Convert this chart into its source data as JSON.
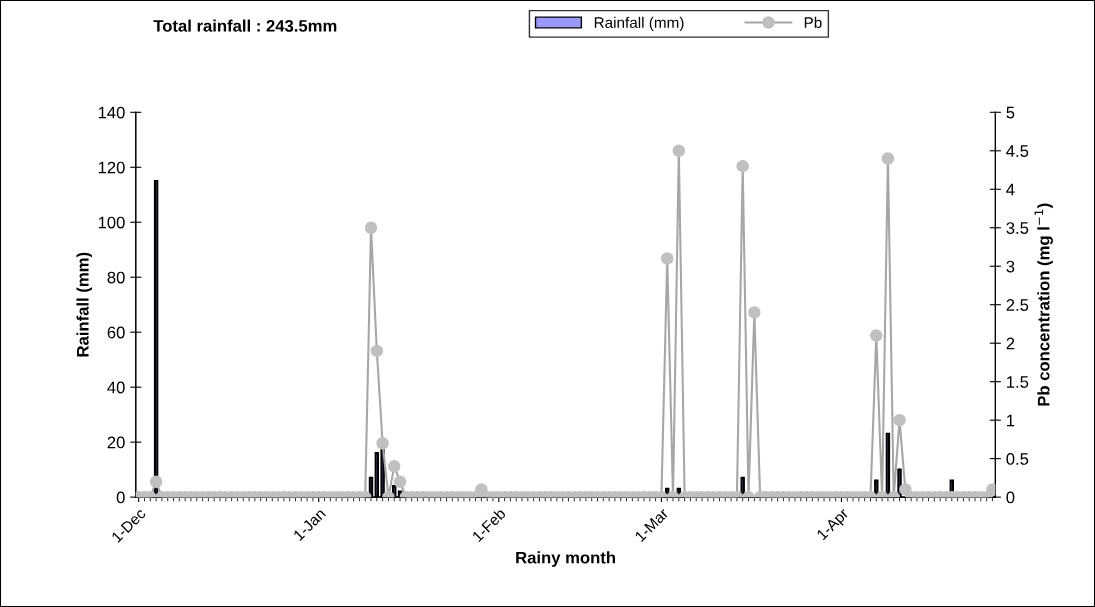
{
  "chart_data": {
    "type": "bar",
    "title": "Total rainfall : 243.5mm",
    "xlabel": "Rainy month",
    "ylabel": "Rainfall (mm)",
    "y2label": "Pb concentration (mg l$^{−1}$)",
    "categories": [
      "1-Dec",
      null,
      null,
      null,
      null,
      null,
      null,
      null,
      null,
      null,
      null,
      null,
      null,
      null,
      null,
      null,
      null,
      null,
      null,
      null,
      null,
      null,
      null,
      null,
      null,
      null,
      null,
      null,
      null,
      null,
      null,
      "1-Jan",
      null,
      null,
      null,
      null,
      null,
      null,
      null,
      null,
      null,
      null,
      null,
      null,
      null,
      null,
      null,
      null,
      null,
      null,
      null,
      null,
      null,
      null,
      null,
      null,
      null,
      null,
      null,
      null,
      null,
      null,
      "1-Feb",
      null,
      null,
      null,
      null,
      null,
      null,
      null,
      null,
      null,
      null,
      null,
      null,
      null,
      null,
      null,
      null,
      null,
      null,
      null,
      null,
      null,
      null,
      null,
      null,
      null,
      null,
      null,
      "1-Mar",
      null,
      null,
      null,
      null,
      null,
      null,
      null,
      null,
      null,
      null,
      null,
      null,
      null,
      null,
      null,
      null,
      null,
      null,
      null,
      null,
      null,
      null,
      null,
      null,
      null,
      null,
      null,
      null,
      null,
      null,
      "1-Apr",
      null,
      null,
      null,
      null,
      null,
      null,
      null,
      null,
      null,
      null,
      null,
      null,
      null,
      null,
      null,
      null,
      null,
      null,
      null,
      null,
      null,
      null,
      null,
      null,
      null,
      null
    ],
    "series": [
      {
        "name": "Rainfall (mm)",
        "color": "#9999ff",
        "values": [
          0,
          0,
          0,
          115,
          0,
          0,
          0,
          0,
          0,
          0,
          0,
          0,
          0,
          0,
          0,
          0,
          0,
          0,
          0,
          0,
          0,
          0,
          0,
          0,
          0,
          0,
          0,
          0,
          0,
          0,
          0,
          0,
          0,
          0,
          0,
          0,
          0,
          0,
          0,
          0,
          7,
          16,
          17,
          0,
          4,
          2,
          0,
          0,
          0,
          0,
          0,
          0,
          0,
          0,
          0,
          0,
          0,
          0,
          0,
          0,
          0,
          0,
          0,
          0,
          0,
          0,
          0,
          0,
          0,
          0,
          0,
          0,
          0,
          0,
          0,
          0,
          0,
          0,
          0,
          0,
          0,
          0,
          0,
          0,
          0,
          0,
          0,
          0,
          0,
          0,
          0,
          3,
          0,
          3,
          0,
          0,
          0,
          0,
          0,
          0,
          0,
          0,
          0,
          0,
          7,
          0,
          0,
          0,
          0,
          0,
          0,
          0,
          0,
          0,
          0,
          0,
          0,
          0,
          0,
          0,
          0,
          0,
          0,
          0,
          0,
          0,
          0,
          6,
          0,
          23,
          0,
          10,
          0,
          0,
          0,
          0,
          0,
          0,
          0,
          0,
          6,
          0,
          0,
          0,
          0,
          0,
          0,
          0
        ]
      },
      {
        "name": "Pb",
        "type": "line",
        "axis": "y2",
        "color": "#a6a6a6",
        "values": [
          0,
          0,
          0,
          0.2,
          0,
          0,
          0,
          0,
          0,
          0,
          0,
          0,
          0,
          0,
          0,
          0,
          0,
          0,
          0,
          0,
          0,
          0,
          0,
          0,
          0,
          0,
          0,
          0,
          0,
          0,
          0,
          0,
          0,
          0,
          0,
          0,
          0,
          0,
          0,
          0,
          3.5,
          1.9,
          0.7,
          0,
          0.4,
          0.2,
          0,
          0,
          0,
          0,
          0,
          0,
          0,
          0,
          0,
          0,
          0,
          0,
          0,
          0.1,
          0,
          0,
          0,
          0,
          0,
          0,
          0,
          0,
          0,
          0,
          0,
          0,
          0,
          0,
          0,
          0,
          0,
          0,
          0,
          0,
          0,
          0,
          0,
          0,
          0,
          0,
          0,
          0,
          0,
          0,
          0,
          3.1,
          0,
          4.5,
          0,
          0,
          0,
          0,
          0,
          0,
          0,
          0,
          0,
          0,
          4.3,
          0,
          2.4,
          0,
          0,
          0,
          0,
          0,
          0,
          0,
          0,
          0,
          0,
          0,
          0,
          0,
          0,
          0,
          0,
          0,
          0,
          0,
          0,
          2.1,
          0,
          4.4,
          0,
          1.0,
          0.1,
          0,
          0,
          0,
          0,
          0,
          0,
          0,
          0,
          0,
          0,
          0,
          0,
          0,
          0,
          0.1
        ]
      }
    ],
    "ylim": [
      0,
      140
    ],
    "yticks": [
      0,
      20,
      40,
      60,
      80,
      100,
      120,
      140
    ],
    "y2lim": [
      0,
      5
    ],
    "y2ticks": [
      0,
      0.5,
      1,
      1.5,
      2,
      2.5,
      3,
      3.5,
      4,
      4.5,
      5
    ],
    "marker": "circle",
    "legend": "top",
    "grid": false
  }
}
